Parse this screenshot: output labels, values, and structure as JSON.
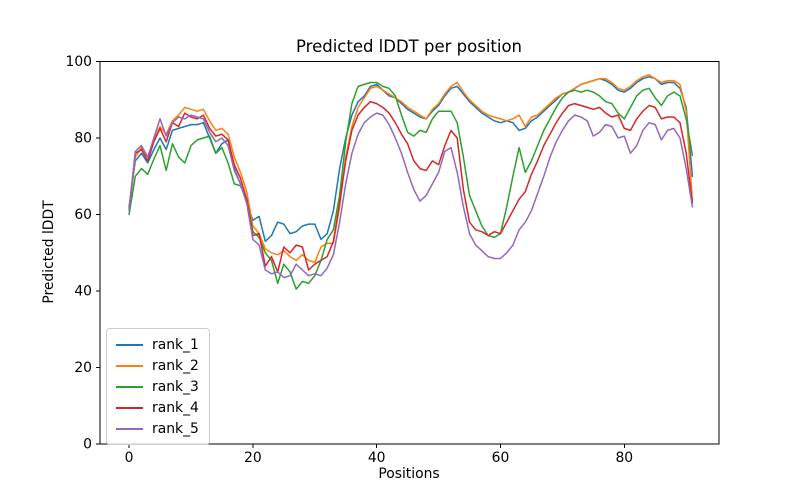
{
  "figure": {
    "title": "Predicted lDDT per position",
    "xlabel": "Positions",
    "ylabel": "Predicted lDDT"
  },
  "chart_data": {
    "type": "line",
    "title": "Predicted lDDT per position",
    "xlabel": "Positions",
    "ylabel": "Predicted lDDT",
    "xlim": [
      -4.7,
      95.3
    ],
    "ylim": [
      0,
      100
    ],
    "x_ticks": [
      0,
      20,
      40,
      60,
      80
    ],
    "y_ticks": [
      0,
      20,
      40,
      60,
      80,
      100
    ],
    "grid": false,
    "legend_position": "lower left",
    "x": [
      0,
      1,
      2,
      3,
      4,
      5,
      6,
      7,
      8,
      9,
      10,
      11,
      12,
      13,
      14,
      15,
      16,
      17,
      18,
      19,
      20,
      21,
      22,
      23,
      24,
      25,
      26,
      27,
      28,
      29,
      30,
      31,
      32,
      33,
      34,
      35,
      36,
      37,
      38,
      39,
      40,
      41,
      42,
      43,
      44,
      45,
      46,
      47,
      48,
      49,
      50,
      51,
      52,
      53,
      54,
      55,
      56,
      57,
      58,
      59,
      60,
      61,
      62,
      63,
      64,
      65,
      66,
      67,
      68,
      69,
      70,
      71,
      72,
      73,
      74,
      75,
      76,
      77,
      78,
      79,
      80,
      81,
      82,
      83,
      84,
      85,
      86,
      87,
      88,
      89,
      90,
      91
    ],
    "series": [
      {
        "name": "rank_1",
        "color": "#1f77b4",
        "values": [
          62,
          74,
          76,
          73.5,
          77,
          80,
          77,
          82,
          82.5,
          83,
          83.5,
          83.5,
          84,
          80,
          76,
          78.5,
          79.5,
          72,
          68,
          63,
          58.5,
          59.5,
          53,
          54.5,
          58,
          57.5,
          55,
          55.5,
          57,
          57.5,
          57.5,
          53.5,
          55,
          61,
          72,
          80,
          86,
          89.5,
          91,
          93.5,
          94,
          92.5,
          91,
          90.5,
          89,
          87.5,
          86.5,
          85.5,
          85,
          87,
          88.5,
          91,
          93,
          93.5,
          91.5,
          89.5,
          88,
          86.5,
          85.5,
          84.5,
          84,
          84.5,
          84,
          82,
          82.5,
          84.5,
          85.5,
          87,
          88.5,
          90,
          91.5,
          92,
          93,
          94,
          94.5,
          95,
          95.5,
          95,
          94,
          92.5,
          92,
          93,
          94.5,
          95.5,
          96,
          95.5,
          94,
          94.5,
          94.5,
          93,
          88,
          70
        ]
      },
      {
        "name": "rank_2",
        "color": "#ff7f0e",
        "values": [
          61,
          75,
          77.5,
          75,
          79.5,
          83,
          81,
          84.5,
          86,
          88,
          87.5,
          87,
          87.5,
          84.5,
          82,
          82.5,
          81,
          75,
          71,
          66,
          57,
          55,
          51,
          50,
          49.5,
          50.5,
          49,
          48,
          49.5,
          48,
          47.5,
          51.5,
          52.5,
          52.5,
          62,
          75,
          83,
          88,
          90.5,
          93,
          93.5,
          92.5,
          91.5,
          90.5,
          89.5,
          88,
          87,
          86,
          85,
          87.5,
          89,
          91.5,
          93.5,
          94.5,
          92,
          90,
          88.5,
          87,
          86,
          85.5,
          85,
          84.5,
          85,
          86,
          83,
          85.5,
          86,
          87.5,
          89,
          90.5,
          91.5,
          92,
          93,
          94,
          94.5,
          95,
          95.5,
          95.5,
          94.5,
          93,
          92.5,
          93.5,
          95,
          96,
          96.5,
          95.5,
          94.5,
          95,
          95,
          94,
          87,
          63.5
        ]
      },
      {
        "name": "rank_3",
        "color": "#2ca02c",
        "values": [
          60,
          70,
          72,
          70.5,
          74.5,
          78,
          71.5,
          78.5,
          75,
          73.5,
          78,
          79.5,
          80,
          80.5,
          76,
          77.5,
          73.5,
          68,
          67.5,
          64,
          55.5,
          54,
          50,
          48,
          42,
          47,
          45,
          40.5,
          42.5,
          42,
          44,
          48,
          53.5,
          56,
          65,
          79,
          89,
          93.5,
          94,
          94.5,
          94.5,
          93.5,
          93,
          91,
          86,
          81.5,
          80.5,
          82,
          81.5,
          85,
          87,
          87,
          87,
          84,
          75,
          65,
          61,
          57,
          54.5,
          54,
          55,
          62,
          70,
          77.5,
          71,
          74,
          78,
          82,
          85,
          88,
          90.5,
          92,
          92.5,
          92,
          92.5,
          92,
          91,
          89.5,
          89,
          86.5,
          85,
          88,
          91,
          92.5,
          93,
          90.5,
          88.5,
          91,
          92,
          91,
          85,
          75.5
        ]
      },
      {
        "name": "rank_4",
        "color": "#d62728",
        "values": [
          61.5,
          76,
          77,
          74,
          79,
          82.5,
          79,
          84,
          83,
          86.5,
          85.5,
          85,
          86,
          82.5,
          80.5,
          81,
          79.5,
          73,
          69.5,
          64,
          54.5,
          55,
          46.5,
          49,
          45,
          51.5,
          50,
          52,
          51.5,
          45.5,
          47,
          48,
          49,
          53,
          63,
          74,
          82,
          86,
          88,
          89.5,
          89,
          88,
          86.5,
          84,
          81,
          78.5,
          74,
          72,
          71.5,
          74,
          73,
          78,
          82,
          80,
          66.5,
          58,
          56,
          55.5,
          54.5,
          55.5,
          55,
          58,
          61,
          64,
          66,
          70.5,
          74,
          78,
          81,
          84,
          86.5,
          88.5,
          89,
          88.5,
          88,
          87.5,
          88,
          86.5,
          85.5,
          86,
          82.5,
          82,
          85,
          87,
          88.5,
          88,
          85,
          85.5,
          85.5,
          84,
          76,
          63
        ]
      },
      {
        "name": "rank_5",
        "color": "#9467bd",
        "values": [
          61,
          76.5,
          78,
          75,
          80,
          85,
          80.5,
          84,
          85.5,
          85,
          86,
          85.5,
          85,
          81.5,
          79,
          80,
          78,
          71.5,
          68,
          63,
          53.5,
          52,
          45.5,
          44.5,
          45,
          43.5,
          44,
          47,
          45.5,
          44,
          44.5,
          44,
          46,
          49.5,
          58,
          68,
          76,
          81,
          84,
          85.5,
          86.5,
          86,
          83.5,
          80,
          76,
          71,
          66.5,
          63.5,
          65,
          68,
          71,
          76.5,
          77.5,
          71,
          62,
          55,
          52,
          50.5,
          49,
          48.5,
          48.5,
          50,
          52,
          56,
          58,
          61,
          65.5,
          70,
          75,
          79,
          82,
          84.5,
          86,
          85.5,
          84.5,
          80.5,
          81.5,
          83.5,
          83,
          80,
          80.5,
          76,
          78,
          82,
          84,
          83.5,
          79.5,
          82,
          82.5,
          80,
          72,
          62
        ]
      }
    ]
  }
}
